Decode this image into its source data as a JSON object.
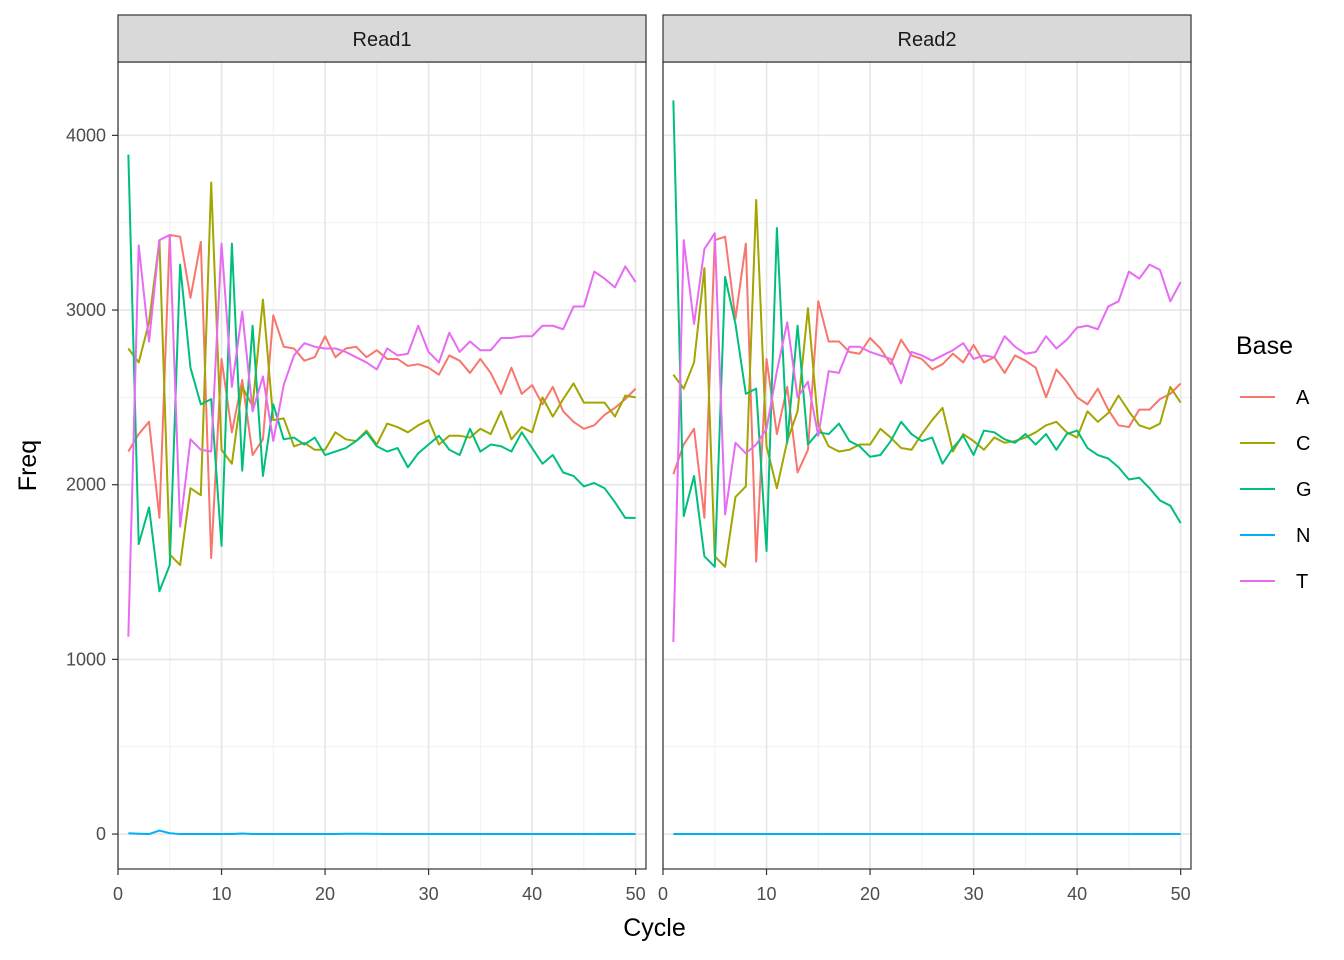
{
  "chart_data": {
    "type": "line",
    "xlabel": "Cycle",
    "ylabel": "Freq",
    "xlim": [
      0,
      51
    ],
    "ylim": [
      -200,
      4420
    ],
    "x_ticks": [
      0,
      10,
      20,
      30,
      40,
      50
    ],
    "y_ticks": [
      0,
      1000,
      2000,
      3000,
      4000
    ],
    "grid": true,
    "legend": {
      "title": "Base",
      "position": "right"
    },
    "colors": {
      "A": "#F8766D",
      "C": "#A3A500",
      "G": "#00BF7D",
      "N": "#00B0F6",
      "T": "#E76BF3"
    },
    "facets": [
      {
        "label": "Read1",
        "x": [
          1,
          2,
          3,
          4,
          5,
          6,
          7,
          8,
          9,
          10,
          11,
          12,
          13,
          14,
          15,
          16,
          17,
          18,
          19,
          20,
          21,
          22,
          23,
          24,
          25,
          26,
          27,
          28,
          29,
          30,
          31,
          32,
          33,
          34,
          35,
          36,
          37,
          38,
          39,
          40,
          41,
          42,
          43,
          44,
          45,
          46,
          47,
          48,
          49,
          50
        ],
        "series": [
          {
            "name": "A",
            "values": [
              2190,
              2290,
              2360,
              1810,
              3430,
              3420,
              3070,
              3390,
              1580,
              2720,
              2300,
              2600,
              2170,
              2260,
              2970,
              2790,
              2780,
              2710,
              2730,
              2850,
              2730,
              2780,
              2790,
              2730,
              2770,
              2720,
              2720,
              2680,
              2690,
              2670,
              2630,
              2740,
              2710,
              2640,
              2720,
              2640,
              2520,
              2670,
              2520,
              2570,
              2460,
              2560,
              2420,
              2360,
              2320,
              2340,
              2400,
              2440,
              2490,
              2550
            ]
          },
          {
            "name": "C",
            "values": [
              2780,
              2700,
              2930,
              3400,
              1600,
              1540,
              1980,
              1940,
              3730,
              2200,
              2120,
              2560,
              2450,
              3060,
              2370,
              2380,
              2220,
              2240,
              2200,
              2200,
              2300,
              2260,
              2250,
              2310,
              2230,
              2350,
              2330,
              2300,
              2340,
              2370,
              2230,
              2280,
              2280,
              2270,
              2320,
              2290,
              2420,
              2260,
              2330,
              2300,
              2500,
              2390,
              2490,
              2580,
              2470,
              2470,
              2470,
              2390,
              2510,
              2500
            ]
          },
          {
            "name": "G",
            "values": [
              3890,
              1660,
              1870,
              1390,
              1540,
              3260,
              2670,
              2460,
              2490,
              1650,
              3380,
              2080,
              2910,
              2050,
              2460,
              2260,
              2270,
              2230,
              2270,
              2170,
              2190,
              2210,
              2250,
              2300,
              2220,
              2190,
              2210,
              2100,
              2180,
              2230,
              2280,
              2200,
              2170,
              2320,
              2190,
              2230,
              2220,
              2190,
              2300,
              2210,
              2120,
              2170,
              2070,
              2050,
              1990,
              2010,
              1980,
              1900,
              1810,
              1810
            ]
          },
          {
            "name": "N",
            "values": [
              5,
              2,
              0,
              20,
              5,
              0,
              0,
              0,
              0,
              0,
              0,
              3,
              0,
              0,
              0,
              0,
              0,
              0,
              0,
              0,
              0,
              2,
              2,
              2,
              1,
              0,
              0,
              0,
              0,
              0,
              0,
              0,
              0,
              0,
              0,
              0,
              0,
              0,
              0,
              0,
              0,
              0,
              0,
              0,
              0,
              0,
              1,
              0,
              0,
              0
            ]
          },
          {
            "name": "T",
            "values": [
              1130,
              3370,
              2820,
              3400,
              3430,
              1760,
              2260,
              2200,
              2190,
              3380,
              2560,
              2990,
              2420,
              2620,
              2250,
              2570,
              2740,
              2810,
              2790,
              2780,
              2780,
              2760,
              2730,
              2700,
              2660,
              2780,
              2740,
              2750,
              2910,
              2760,
              2700,
              2870,
              2760,
              2820,
              2770,
              2770,
              2840,
              2840,
              2850,
              2850,
              2910,
              2910,
              2890,
              3020,
              3020,
              3220,
              3180,
              3130,
              3250,
              3160
            ]
          }
        ]
      },
      {
        "label": "Read2",
        "x": [
          1,
          2,
          3,
          4,
          5,
          6,
          7,
          8,
          9,
          10,
          11,
          12,
          13,
          14,
          15,
          16,
          17,
          18,
          19,
          20,
          21,
          22,
          23,
          24,
          25,
          26,
          27,
          28,
          29,
          30,
          31,
          32,
          33,
          34,
          35,
          36,
          37,
          38,
          39,
          40,
          41,
          42,
          43,
          44,
          45,
          46,
          47,
          48,
          49,
          50
        ],
        "series": [
          {
            "name": "A",
            "values": [
              2060,
              2230,
              2320,
              1810,
              3400,
              3420,
              2950,
              3380,
              1560,
              2720,
              2290,
              2560,
              2070,
              2200,
              3050,
              2820,
              2820,
              2760,
              2750,
              2840,
              2780,
              2690,
              2830,
              2740,
              2720,
              2660,
              2690,
              2750,
              2700,
              2800,
              2700,
              2730,
              2640,
              2740,
              2710,
              2670,
              2500,
              2660,
              2590,
              2500,
              2460,
              2550,
              2430,
              2340,
              2330,
              2430,
              2430,
              2490,
              2520,
              2580
            ]
          },
          {
            "name": "C",
            "values": [
              2630,
              2550,
              2700,
              3240,
              1590,
              1530,
              1930,
              1990,
              3630,
              2220,
              1980,
              2250,
              2420,
              3010,
              2340,
              2220,
              2190,
              2200,
              2230,
              2230,
              2320,
              2270,
              2210,
              2200,
              2290,
              2370,
              2440,
              2190,
              2290,
              2250,
              2200,
              2270,
              2240,
              2250,
              2270,
              2300,
              2340,
              2360,
              2300,
              2270,
              2420,
              2360,
              2410,
              2510,
              2420,
              2340,
              2320,
              2350,
              2560,
              2470
            ]
          },
          {
            "name": "G",
            "values": [
              4200,
              1820,
              2050,
              1590,
              1530,
              3190,
              2920,
              2520,
              2550,
              1620,
              3470,
              2240,
              2910,
              2230,
              2300,
              2290,
              2350,
              2250,
              2220,
              2160,
              2170,
              2250,
              2360,
              2290,
              2250,
              2270,
              2120,
              2210,
              2280,
              2170,
              2310,
              2300,
              2260,
              2240,
              2290,
              2230,
              2290,
              2200,
              2290,
              2310,
              2210,
              2170,
              2150,
              2100,
              2030,
              2040,
              1980,
              1910,
              1880,
              1780
            ]
          },
          {
            "name": "N",
            "values": [
              0,
              0,
              0,
              0,
              0,
              0,
              0,
              0,
              0,
              0,
              0,
              0,
              0,
              0,
              0,
              0,
              0,
              0,
              0,
              0,
              0,
              0,
              0,
              0,
              0,
              0,
              0,
              0,
              0,
              0,
              0,
              0,
              0,
              0,
              0,
              0,
              0,
              0,
              0,
              0,
              0,
              0,
              0,
              0,
              0,
              0,
              0,
              0,
              0,
              0
            ]
          },
          {
            "name": "T",
            "values": [
              1100,
              3400,
              2920,
              3350,
              3440,
              1830,
              2240,
              2180,
              2230,
              2320,
              2650,
              2930,
              2500,
              2590,
              2280,
              2650,
              2640,
              2790,
              2790,
              2760,
              2740,
              2720,
              2580,
              2760,
              2740,
              2710,
              2740,
              2770,
              2810,
              2720,
              2740,
              2730,
              2850,
              2790,
              2750,
              2760,
              2850,
              2780,
              2830,
              2900,
              2910,
              2890,
              3020,
              3050,
              3220,
              3180,
              3260,
              3230,
              3050,
              3160
            ]
          }
        ]
      }
    ]
  }
}
